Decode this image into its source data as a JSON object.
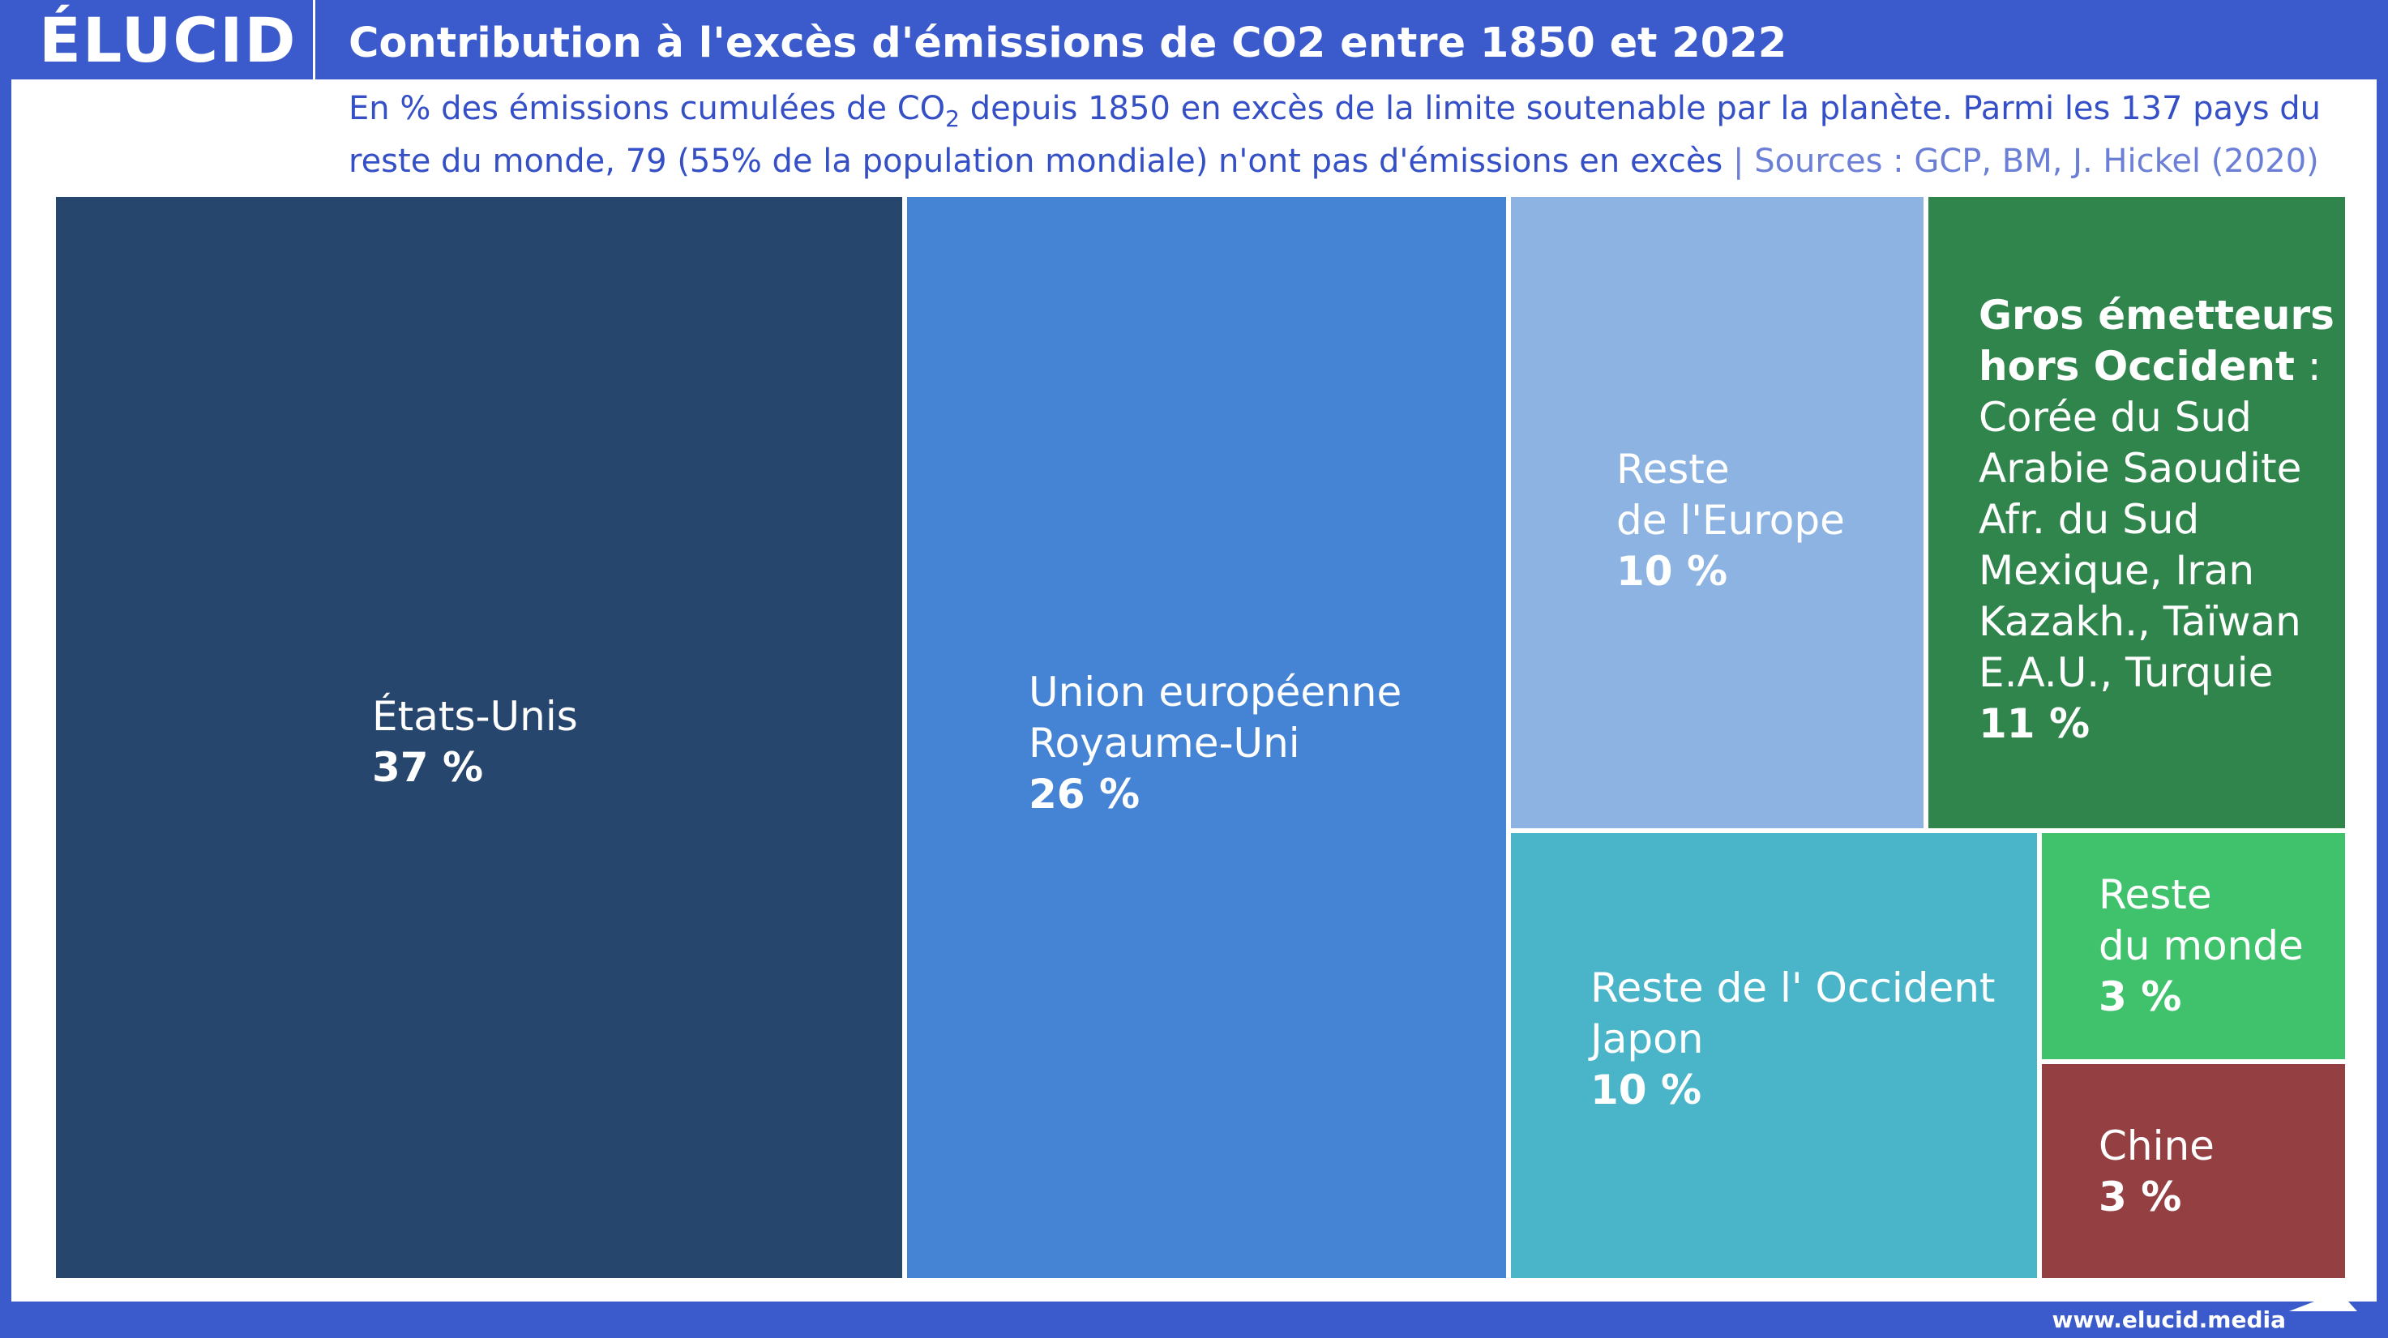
{
  "brand": {
    "logo": "ÉLUCID",
    "url": "www.elucid.media"
  },
  "header": {
    "title": "Contribution à l'excès d'émissions de CO2 entre 1850 et 2022"
  },
  "subtitle": {
    "line1_a": "En % des émissions cumulées de CO",
    "line1_sub": "2",
    "line1_b": " depuis 1850 en excès de la limite soutenable par la planète. Parmi les 137 pays du",
    "line2": "reste du monde, 79 (55% de la population mondiale) n'ont pas d'émissions en excès",
    "sources": "  |  Sources : GCP, BM, J. Hickel (2020)"
  },
  "chart_data": {
    "type": "treemap",
    "unit": "%",
    "items": [
      {
        "label_lines": [
          "États-Unis"
        ],
        "value": 37,
        "value_label": "37 %",
        "color": "#27466e"
      },
      {
        "label_lines": [
          "Union européenne",
          "Royaume-Uni"
        ],
        "value": 26,
        "value_label": "26 %",
        "color": "#4584d4"
      },
      {
        "label_lines": [
          "Reste",
          "de l'Europe"
        ],
        "value": 10,
        "value_label": "10 %",
        "color": "#8db3e2"
      },
      {
        "label_bold_lines": [
          "Gros émetteurs",
          "hors Occident"
        ],
        "label_bold_suffix": " :",
        "label_lines": [
          "Corée du Sud",
          "Arabie Saoudite",
          "Afr. du Sud",
          "Mexique, Iran",
          "Kazakh., Taïwan",
          "E.A.U., Turquie"
        ],
        "value": 11,
        "value_label": "11 %",
        "color": "#2f854b"
      },
      {
        "label_lines": [
          "Reste de l' Occident",
          "Japon"
        ],
        "value": 10,
        "value_label": "10 %",
        "color": "#4ab5c9"
      },
      {
        "label_lines": [
          "Reste",
          "du monde"
        ],
        "value": 3,
        "value_label": "3 %",
        "color": "#40c26d"
      },
      {
        "label_lines": [
          "Chine"
        ],
        "value": 3,
        "value_label": "3 %",
        "color": "#943f41"
      }
    ]
  }
}
